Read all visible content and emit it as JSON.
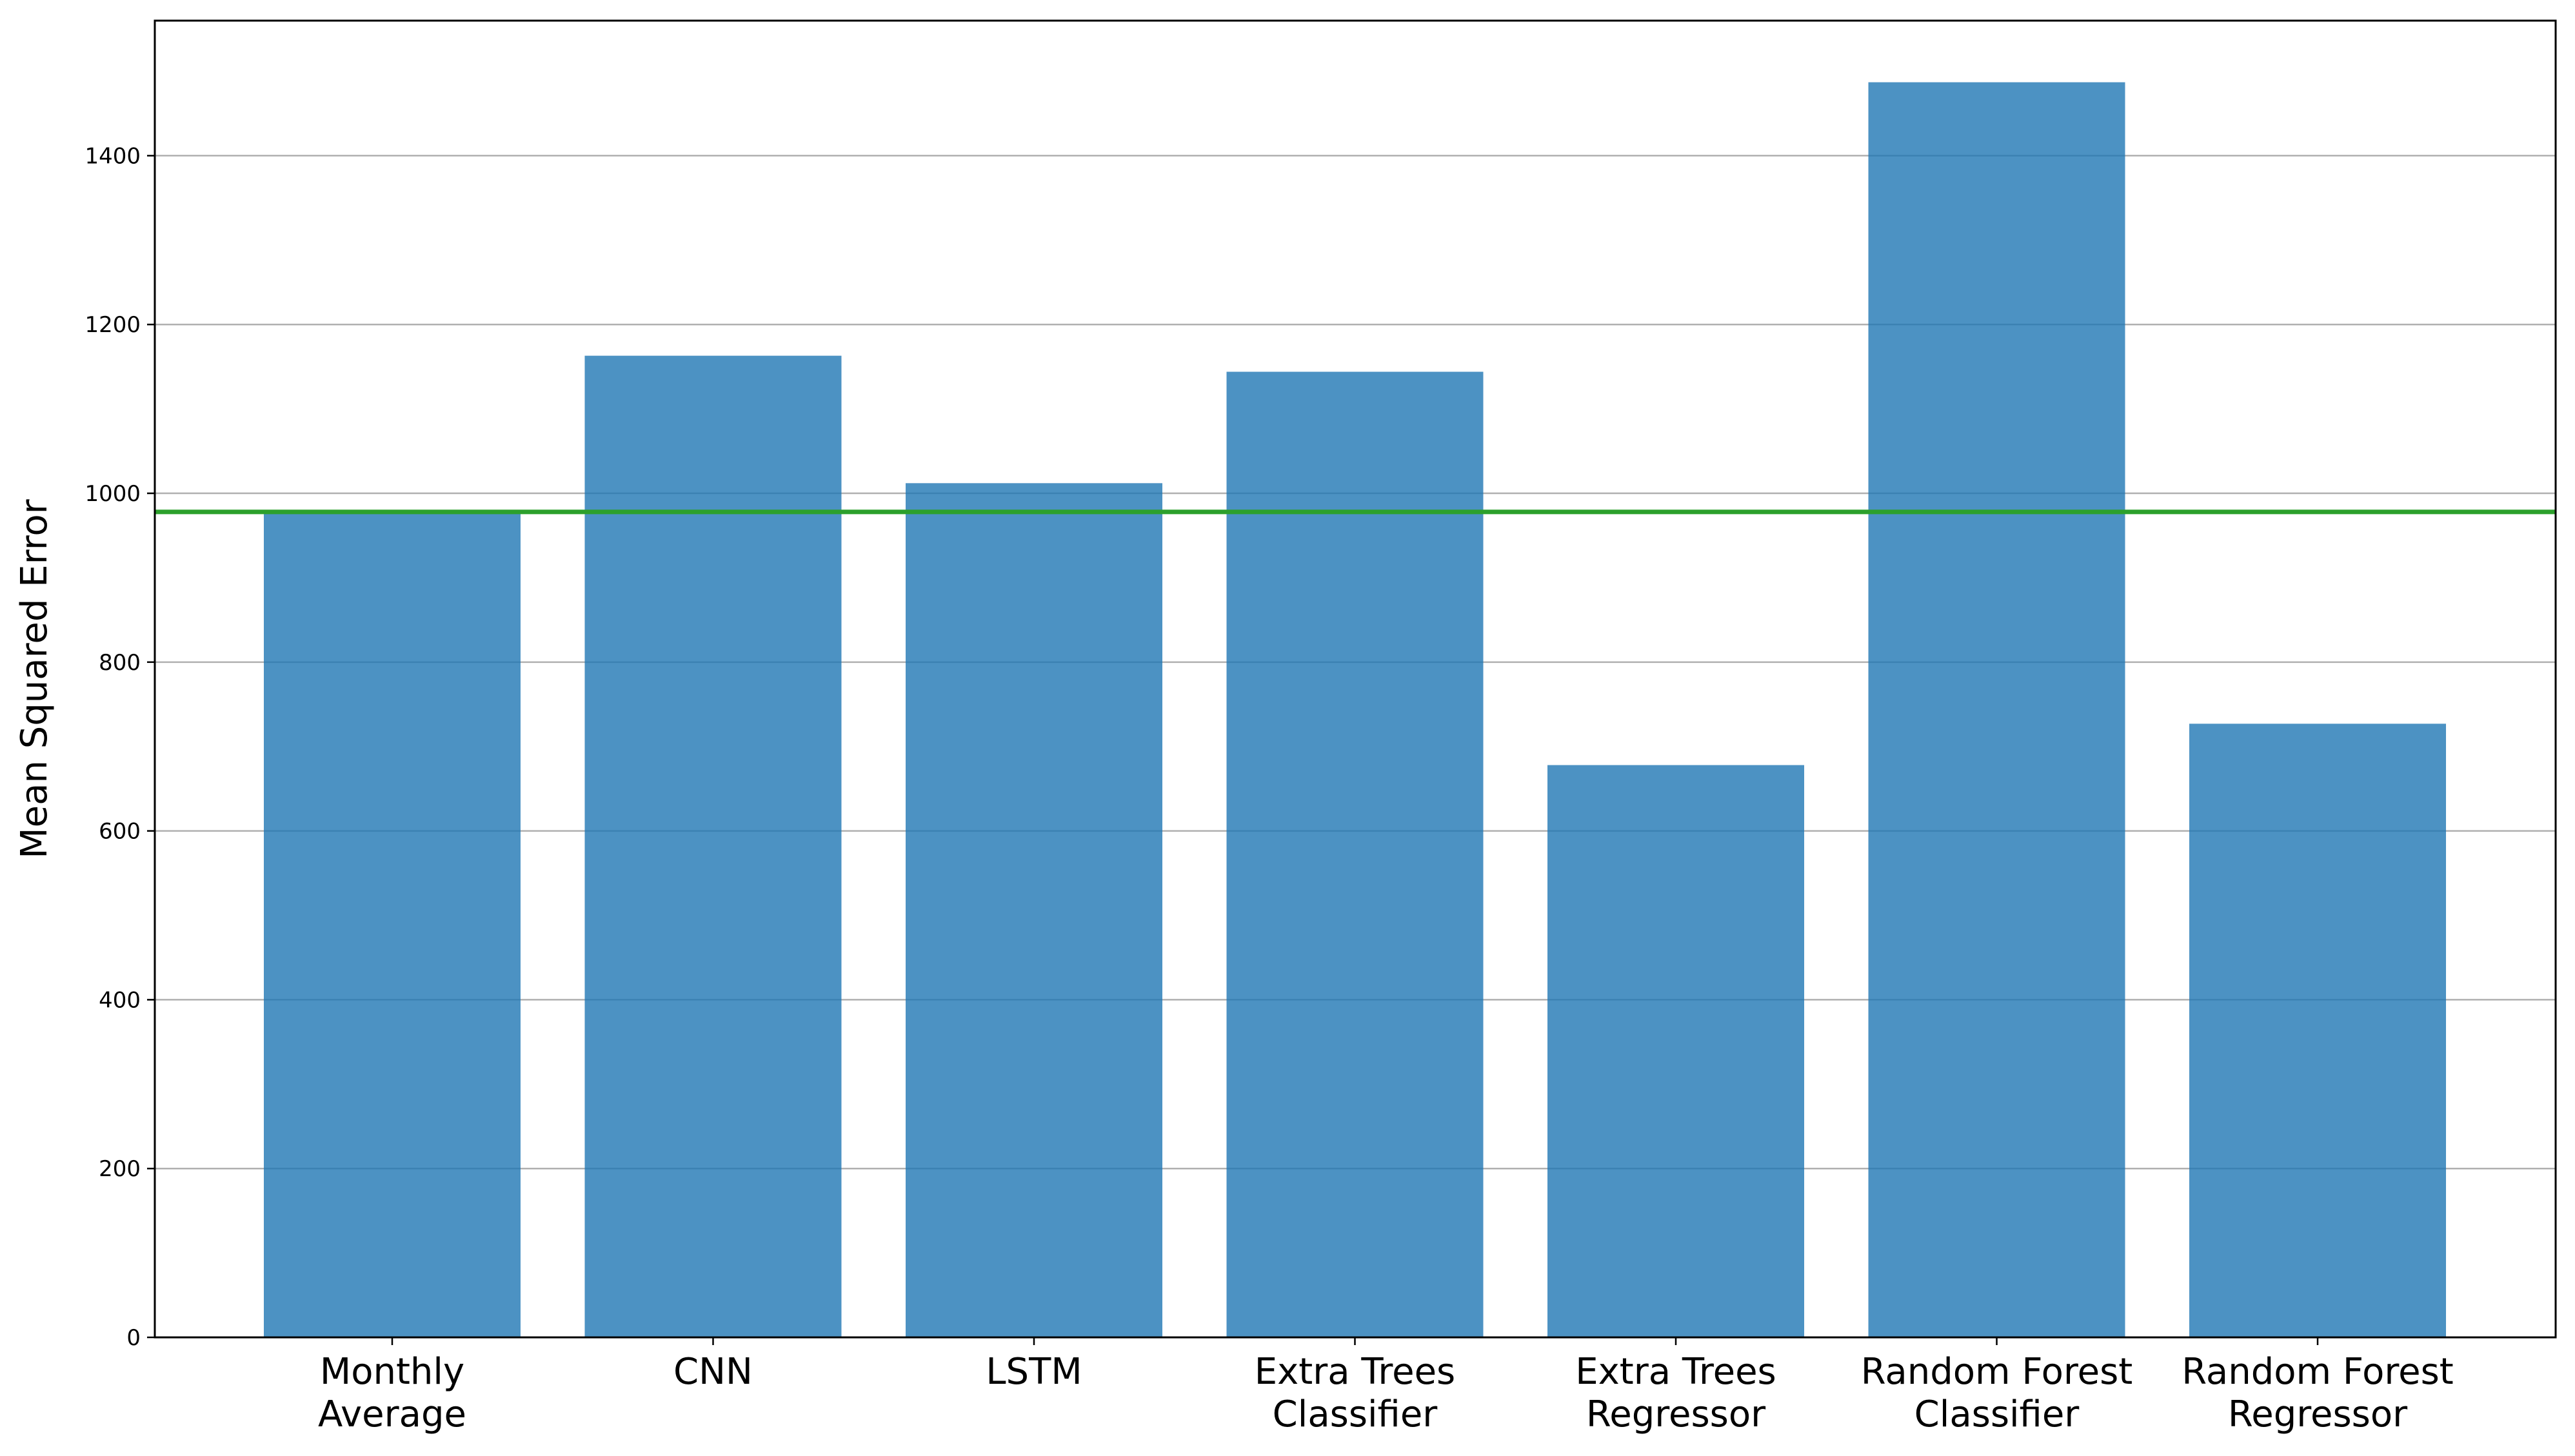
{
  "chart_data": {
    "type": "bar",
    "categories": [
      [
        "Monthly",
        "Average"
      ],
      [
        "CNN"
      ],
      [
        "LSTM"
      ],
      [
        "Extra Trees",
        "Classifier"
      ],
      [
        "Extra Trees",
        "Regressor"
      ],
      [
        "Random Forest",
        "Classifier"
      ],
      [
        "Random Forest",
        "Regressor"
      ]
    ],
    "values": [
      978,
      1163,
      1012,
      1144,
      678,
      1487,
      727
    ],
    "reference_line": 978,
    "title": "",
    "xlabel": "",
    "ylabel": "Mean Squared Error",
    "ylim": [
      0,
      1560
    ],
    "yticks": [
      0,
      200,
      400,
      600,
      800,
      1000,
      1200,
      1400
    ],
    "grid": "y",
    "legend": "none",
    "colors": {
      "bar": "#1f77b4",
      "reference_line": "#2ca02c",
      "grid": "#b0b0b0"
    }
  }
}
